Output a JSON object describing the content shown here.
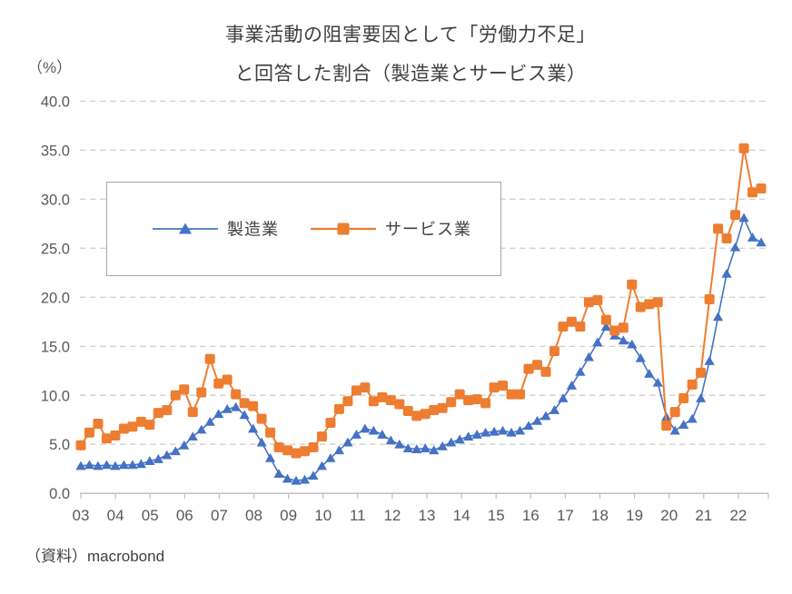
{
  "title": {
    "line1": "事業活動の阻害要因として「労働力不足」",
    "line2": "と回答した割合（製造業とサービス業）"
  },
  "y_axis": {
    "unit_label": "（%）",
    "tick_labels": [
      "40.0",
      "35.0",
      "30.0",
      "25.0",
      "20.0",
      "15.0",
      "10.0",
      "5.0",
      "0.0"
    ],
    "min": 0,
    "max": 40,
    "step": 5
  },
  "x_axis": {
    "year_labels": [
      "03",
      "04",
      "05",
      "06",
      "07",
      "08",
      "09",
      "10",
      "11",
      "12",
      "13",
      "14",
      "15",
      "16",
      "17",
      "18",
      "19",
      "20",
      "21",
      "22"
    ]
  },
  "legend": [
    {
      "label": "製造業",
      "color": "#4472C4",
      "marker": "triangle"
    },
    {
      "label": "サービス業",
      "color": "#ED7D31",
      "marker": "square"
    }
  ],
  "source": "（資料）macrobond",
  "colors": {
    "manufacturing": "#4472C4",
    "services": "#ED7D31",
    "gridline": "#d2d2d2",
    "axis_line": "#bfbfbf",
    "text_dark": "#3f3f3f",
    "text_gray": "#595959",
    "legend_border": "#a6a6a6"
  },
  "chart_data": {
    "type": "line",
    "frequency": "quarterly",
    "start_year": 2003,
    "end_year": 2022,
    "title": "事業活動の阻害要因として「労働力不足」と回答した割合（製造業とサービス業）",
    "ylabel": "（%）",
    "ylim": [
      0,
      40
    ],
    "grid": "horizontal-dashed",
    "legend_position": "upper-left-box",
    "series": [
      {
        "name": "製造業",
        "color": "#4472C4",
        "marker": "triangle",
        "values": [
          2.8,
          2.9,
          2.8,
          2.9,
          2.8,
          2.9,
          2.9,
          3.0,
          3.3,
          3.5,
          3.9,
          4.3,
          4.9,
          5.8,
          6.5,
          7.3,
          8.1,
          8.6,
          8.8,
          8.0,
          6.6,
          5.2,
          3.6,
          2.0,
          1.5,
          1.3,
          1.4,
          1.8,
          2.8,
          3.6,
          4.4,
          5.2,
          6.0,
          6.6,
          6.4,
          6.0,
          5.4,
          5.0,
          4.6,
          4.5,
          4.6,
          4.4,
          4.8,
          5.2,
          5.5,
          5.8,
          6.0,
          6.2,
          6.3,
          6.4,
          6.2,
          6.4,
          6.9,
          7.4,
          7.9,
          8.5,
          9.7,
          11.0,
          12.4,
          13.9,
          15.4,
          17.0,
          16.1,
          15.6,
          15.2,
          13.8,
          12.2,
          11.3,
          7.8,
          6.4,
          7.0,
          7.6,
          9.7,
          13.5,
          18.0,
          22.4,
          25.1,
          28.1,
          26.1,
          25.6
        ]
      },
      {
        "name": "サービス業",
        "color": "#ED7D31",
        "marker": "square",
        "values": [
          4.9,
          6.2,
          7.1,
          5.6,
          5.9,
          6.6,
          6.8,
          7.3,
          7.0,
          8.2,
          8.5,
          10.0,
          10.6,
          8.3,
          10.3,
          13.7,
          11.2,
          11.6,
          10.1,
          9.2,
          8.9,
          7.6,
          6.2,
          4.7,
          4.4,
          4.1,
          4.3,
          4.7,
          5.8,
          7.2,
          8.6,
          9.4,
          10.5,
          10.8,
          9.4,
          9.8,
          9.5,
          9.1,
          8.4,
          7.9,
          8.1,
          8.5,
          8.7,
          9.3,
          10.1,
          9.5,
          9.6,
          9.2,
          10.8,
          11.0,
          10.1,
          10.1,
          12.7,
          13.1,
          12.4,
          14.5,
          17.0,
          17.5,
          17.0,
          19.5,
          19.7,
          17.7,
          16.6,
          16.9,
          21.3,
          19.0,
          19.3,
          19.5,
          6.9,
          8.3,
          9.7,
          11.1,
          12.3,
          19.8,
          27.0,
          26.0,
          28.4,
          35.2,
          30.7,
          31.1
        ]
      }
    ]
  }
}
